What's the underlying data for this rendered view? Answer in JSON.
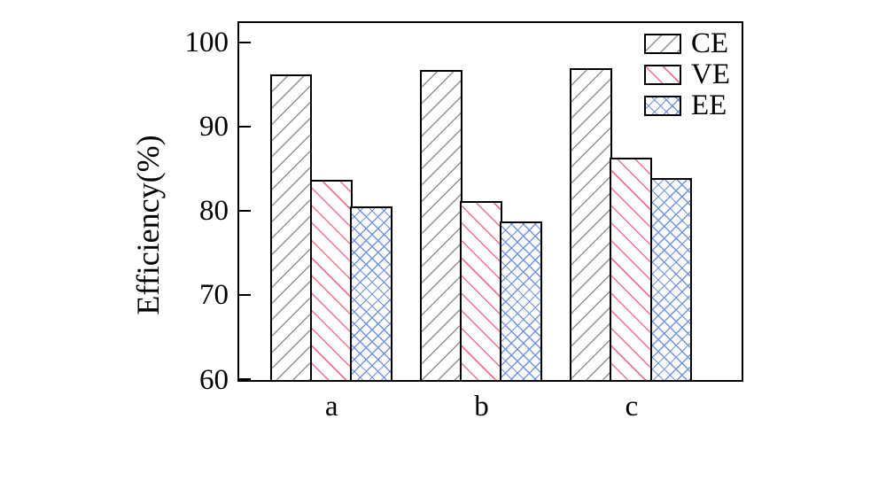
{
  "chart_data": {
    "type": "bar",
    "title": "",
    "xlabel": "",
    "ylabel": "Efficiency(%)",
    "categories": [
      "a",
      "b",
      "c"
    ],
    "series": [
      {
        "name": "CE",
        "values": [
          96.3,
          96.8,
          97.0
        ],
        "hatch": "/",
        "color": "#8c9196"
      },
      {
        "name": "VE",
        "values": [
          83.8,
          81.3,
          86.4
        ],
        "hatch": "\\",
        "color": "#ee7290"
      },
      {
        "name": "EE",
        "values": [
          80.6,
          78.8,
          84.0
        ],
        "hatch": "x",
        "color": "#6f93e0"
      }
    ],
    "ylim": [
      60,
      102.3
    ],
    "yticks": [
      60,
      70,
      80,
      90,
      100
    ],
    "legend_position": "top-right",
    "grid": false,
    "bar_edge_color": "#000000",
    "axis_color": "#000000",
    "background": "#ffffff"
  }
}
